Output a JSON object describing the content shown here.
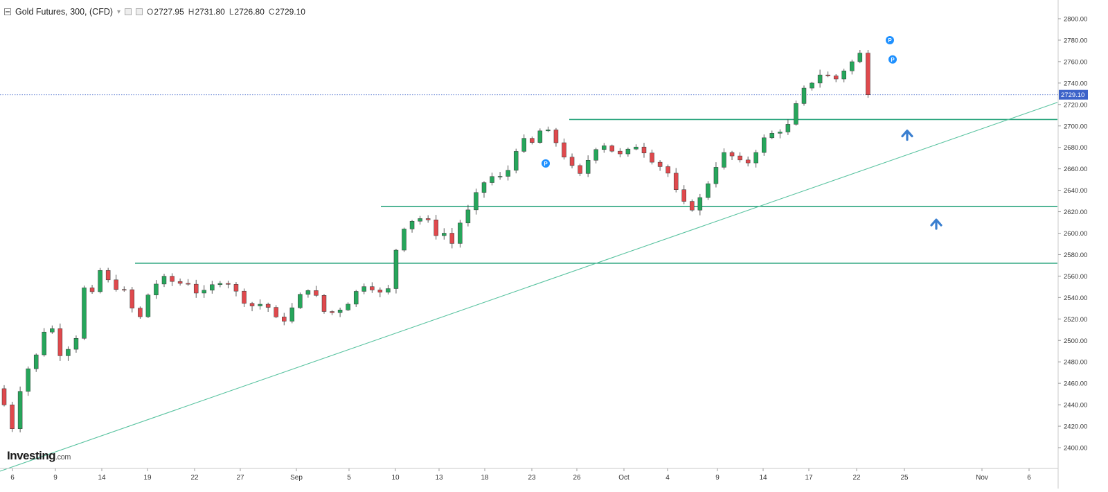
{
  "header": {
    "symbol": "Gold Futures, 300, (CFD)",
    "dropdown": "▾",
    "open_label": "O",
    "open": "2727.95",
    "high_label": "H",
    "high": "2731.80",
    "low_label": "L",
    "low": "2726.80",
    "close_label": "C",
    "close": "2729.10"
  },
  "logo": {
    "main": "Investing",
    "suffix": ".com"
  },
  "price_tag": "2729.10",
  "colors": {
    "up": "#26a65b",
    "down": "#e0494d",
    "level_line": "#2aa57e",
    "trend_line": "#59c3a0",
    "price_tag_bg": "#3d63c9",
    "arrow": "#3a7fd0",
    "marker": "#1e90ff"
  },
  "chart_data": {
    "type": "candlestick",
    "y_axis": {
      "ticks": [
        "2800.00",
        "2780.00",
        "2760.00",
        "2740.00",
        "2720.00",
        "2700.00",
        "2680.00",
        "2660.00",
        "2640.00",
        "2620.00",
        "2600.00",
        "2580.00",
        "2560.00",
        "2540.00",
        "2520.00",
        "2500.00",
        "2480.00",
        "2460.00",
        "2440.00",
        "2420.00",
        "2400.00"
      ],
      "ylim": [
        2392,
        2808
      ]
    },
    "x_axis": {
      "ticks": [
        "6",
        "9",
        "14",
        "19",
        "22",
        "27",
        "Sep",
        "5",
        "10",
        "13",
        "18",
        "23",
        "26",
        "Oct",
        "4",
        "9",
        "14",
        "17",
        "22",
        "25",
        "Nov",
        "6"
      ]
    },
    "last_price": 2729.1,
    "support_levels": [
      {
        "price": 2706,
        "from_label": "24"
      },
      {
        "price": 2625,
        "from_label": "7"
      },
      {
        "price": 2572,
        "from_label": "17"
      }
    ],
    "trendline": {
      "from": {
        "label": "6",
        "price": 2390
      },
      "to": {
        "label": "6",
        "price": 2722
      }
    },
    "markers": [
      {
        "label": "P",
        "near": "23",
        "price": 2665
      },
      {
        "label": "P",
        "near": "22",
        "price": 2780
      },
      {
        "label": "P",
        "near": "22",
        "price": 2762
      }
    ],
    "arrows": [
      {
        "direction": "up",
        "price": 2693
      },
      {
        "direction": "up",
        "price": 2610
      }
    ],
    "anchors": [
      [
        0,
        2455
      ],
      [
        0.5,
        2440
      ],
      [
        1,
        2425
      ],
      [
        1.6,
        2418
      ],
      [
        2.2,
        2445
      ],
      [
        2.8,
        2465
      ],
      [
        3.4,
        2473
      ],
      [
        4.2,
        2482
      ],
      [
        4.7,
        2488
      ],
      [
        5.2,
        2512
      ],
      [
        6.0,
        2505
      ],
      [
        6.8,
        2514
      ],
      [
        7.3,
        2490
      ],
      [
        7.8,
        2486
      ],
      [
        8.5,
        2494
      ],
      [
        9.3,
        2493
      ],
      [
        9.8,
        2520
      ],
      [
        10.5,
        2548
      ],
      [
        11.4,
        2543
      ],
      [
        12.0,
        2540
      ],
      [
        12.5,
        2565
      ],
      [
        13.3,
        2556
      ],
      [
        14.0,
        2552
      ],
      [
        15.0,
        2548
      ],
      [
        16.0,
        2542
      ],
      [
        17.0,
        2517
      ],
      [
        17.6,
        2522
      ],
      [
        18.3,
        2540
      ],
      [
        19.2,
        2552
      ],
      [
        20.3,
        2556
      ],
      [
        21.0,
        2560
      ],
      [
        22.0,
        2550
      ],
      [
        23.0,
        2557
      ],
      [
        24.0,
        2551
      ],
      [
        25.0,
        2540
      ],
      [
        26.0,
        2548
      ],
      [
        27.0,
        2553
      ],
      [
        28.0,
        2559
      ],
      [
        29.0,
        2549
      ],
      [
        30.0,
        2540
      ],
      [
        31.0,
        2535
      ],
      [
        32.0,
        2530
      ],
      [
        33.0,
        2538
      ],
      [
        34.0,
        2524
      ],
      [
        35.0,
        2515
      ],
      [
        36.0,
        2525
      ],
      [
        37.0,
        2534
      ],
      [
        38.0,
        2548
      ],
      [
        39.0,
        2550
      ],
      [
        40.0,
        2530
      ],
      [
        41.0,
        2524
      ],
      [
        42.0,
        2528
      ],
      [
        43.0,
        2532
      ],
      [
        44.0,
        2540
      ],
      [
        45.0,
        2550
      ],
      [
        46.0,
        2555
      ],
      [
        47.0,
        2545
      ],
      [
        48.0,
        2542
      ],
      [
        49.0,
        2552
      ],
      [
        49.5,
        2585
      ],
      [
        50.3,
        2605
      ],
      [
        51.3,
        2612
      ],
      [
        52.5,
        2614
      ],
      [
        53.5,
        2610
      ],
      [
        54.3,
        2600
      ],
      [
        55.5,
        2600
      ],
      [
        56.2,
        2582
      ],
      [
        57.0,
        2605
      ],
      [
        58.0,
        2615
      ],
      [
        59.0,
        2625
      ],
      [
        60.0,
        2645
      ],
      [
        61.0,
        2650
      ],
      [
        62.0,
        2655
      ],
      [
        63.0,
        2648
      ],
      [
        64.0,
        2670
      ],
      [
        65.0,
        2688
      ],
      [
        66.0,
        2683
      ],
      [
        67.0,
        2684
      ],
      [
        67.8,
        2702
      ],
      [
        68.3,
        2695
      ],
      [
        69.0,
        2690
      ],
      [
        70.0,
        2680
      ],
      [
        71.0,
        2665
      ],
      [
        71.8,
        2658
      ],
      [
        72.4,
        2652
      ],
      [
        73.0,
        2662
      ],
      [
        74.0,
        2675
      ],
      [
        75.0,
        2686
      ],
      [
        76.0,
        2680
      ],
      [
        77.0,
        2675
      ],
      [
        78.0,
        2670
      ],
      [
        79.0,
        2682
      ],
      [
        80.0,
        2682
      ],
      [
        81.0,
        2672
      ],
      [
        82.0,
        2666
      ],
      [
        83.0,
        2660
      ],
      [
        84.0,
        2652
      ],
      [
        84.8,
        2630
      ],
      [
        85.5,
        2627
      ],
      [
        86.5,
        2624
      ],
      [
        87.2,
        2627
      ],
      [
        88.0,
        2640
      ],
      [
        89.0,
        2655
      ],
      [
        90.0,
        2672
      ],
      [
        91.0,
        2675
      ],
      [
        92.0,
        2668
      ],
      [
        93.0,
        2663
      ],
      [
        94.0,
        2670
      ],
      [
        95.0,
        2685
      ],
      [
        96.0,
        2690
      ],
      [
        97.0,
        2695
      ],
      [
        98.0,
        2698
      ],
      [
        98.5,
        2700
      ],
      [
        99.3,
        2715
      ],
      [
        100.0,
        2728
      ],
      [
        101.0,
        2738
      ],
      [
        102.0,
        2745
      ],
      [
        103.0,
        2752
      ],
      [
        104.0,
        2740
      ],
      [
        105.0,
        2748
      ],
      [
        106.0,
        2757
      ],
      [
        107.0,
        2762
      ],
      [
        107.6,
        2768
      ],
      [
        108.3,
        2740
      ],
      [
        108.6,
        2729
      ]
    ]
  }
}
